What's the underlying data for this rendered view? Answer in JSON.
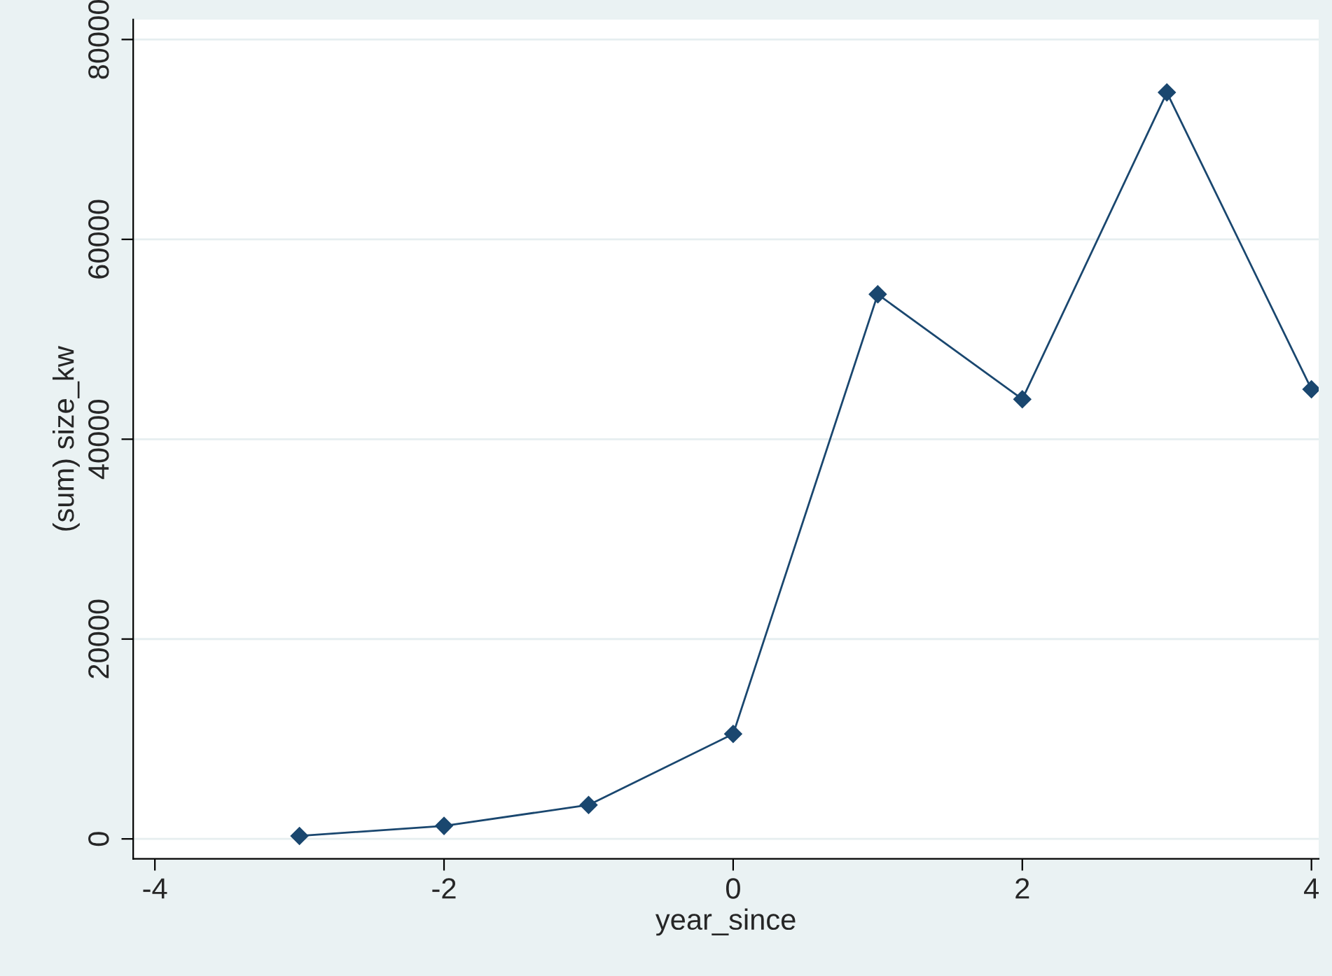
{
  "chart_data": {
    "type": "line",
    "xlabel": "year_since",
    "ylabel": "(sum) size_kw",
    "x": [
      -3,
      -2,
      -1,
      0,
      1,
      2,
      3,
      4
    ],
    "series": [
      {
        "color": "#1a476f",
        "values": [
          300,
          1300,
          3400,
          10500,
          54500,
          44000,
          74700,
          45000
        ]
      }
    ],
    "xlim": [
      -4.15,
      4.05
    ],
    "ylim": [
      -2000,
      82000
    ],
    "xticks": [
      -4,
      -2,
      0,
      2,
      4
    ],
    "yticks": [
      0,
      20000,
      40000,
      60000,
      80000
    ],
    "grid": "y",
    "marker": "diamond",
    "line_style": "solid",
    "legend": false
  }
}
